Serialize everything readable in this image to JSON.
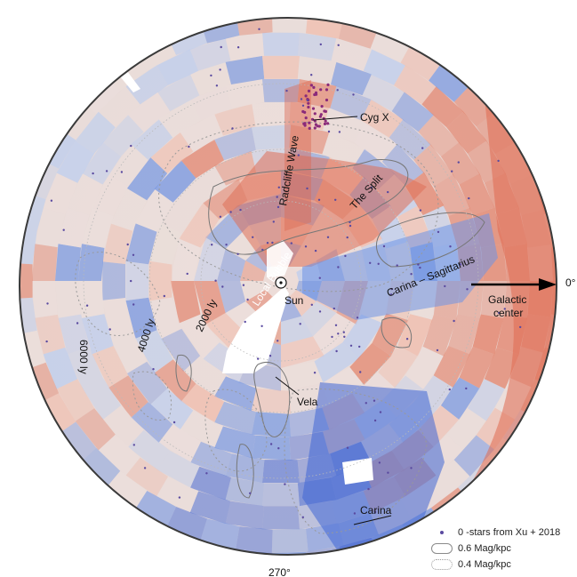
{
  "map": {
    "labels": {
      "cygx": "Cyg X",
      "radcliffe": "Radcliffe Wave",
      "split": "The Split",
      "carina_sagittarius": "Carina – Sagittarius",
      "local_bubble": "Local Bubble",
      "sun": "Sun",
      "vela": "Vela",
      "carina": "Carina",
      "galactic_center": [
        "Galactic",
        "center"
      ],
      "angle_0": "0°",
      "angle_270": "270°",
      "ring_2000": "2000 ly",
      "ring_4000": "4000 ly",
      "ring_6000": "6000 ly"
    },
    "colors": {
      "red": "#e2795f",
      "light_red": "#f2b8a6",
      "neutral": "#ecdfdc",
      "light_blue": "#b9cdf1",
      "blue": "#6e93e4",
      "deep_blue": "#3f66d6",
      "star_dot": "#5a4aa0",
      "cygx_dot": "#8a2a7a"
    }
  },
  "legend": {
    "stars": "0 -stars from Xu + 2018",
    "solid": "0.6 Mag/kpc",
    "dotted": "0.4 Mag/kpc"
  }
}
